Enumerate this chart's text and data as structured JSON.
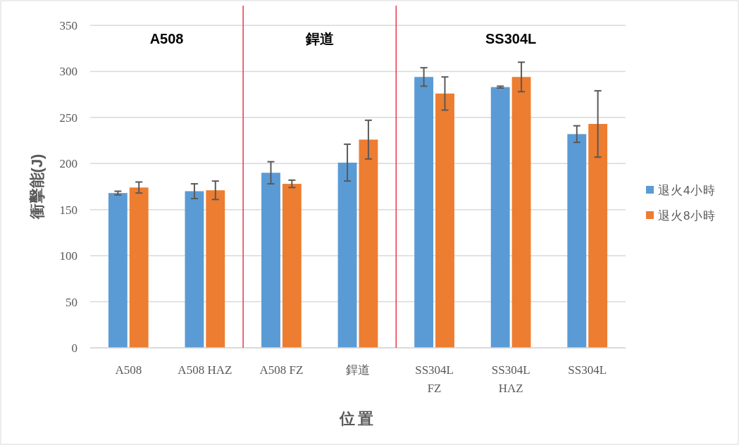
{
  "chart_data": {
    "type": "bar",
    "xlabel": "位置",
    "ylabel": "衝擊能(J)",
    "categories": [
      "A508",
      "A508 HAZ",
      "A508 FZ",
      "銲道",
      "SS304L FZ",
      "SS304L HAZ",
      "SS304L"
    ],
    "series": [
      {
        "name": "退火4小時",
        "color": "#5b9bd5",
        "values": [
          168,
          170,
          190,
          201,
          294,
          283,
          232
        ],
        "errors": [
          2,
          8,
          12,
          20,
          10,
          1,
          9
        ]
      },
      {
        "name": "退火8小時",
        "color": "#ed7d31",
        "values": [
          174,
          171,
          178,
          226,
          276,
          294,
          243
        ],
        "errors": [
          6,
          10,
          4,
          21,
          18,
          16,
          36
        ]
      }
    ],
    "ylim": [
      0,
      350
    ],
    "yticks": [
      0,
      50,
      100,
      150,
      200,
      250,
      300,
      350
    ],
    "grid": "y",
    "legend": "right",
    "annotations": [
      "A508",
      "銲道",
      "SS304L"
    ]
  }
}
